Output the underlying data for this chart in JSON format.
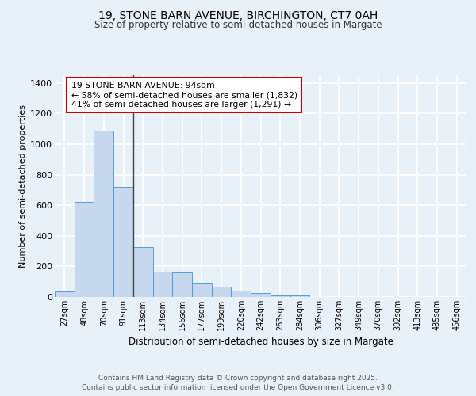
{
  "title1": "19, STONE BARN AVENUE, BIRCHINGTON, CT7 0AH",
  "title2": "Size of property relative to semi-detached houses in Margate",
  "xlabel": "Distribution of semi-detached houses by size in Margate",
  "ylabel": "Number of semi-detached properties",
  "footer1": "Contains HM Land Registry data © Crown copyright and database right 2025.",
  "footer2": "Contains public sector information licensed under the Open Government Licence v3.0.",
  "annotation_line1": "19 STONE BARN AVENUE: 94sqm",
  "annotation_line2": "← 58% of semi-detached houses are smaller (1,832)",
  "annotation_line3": "41% of semi-detached houses are larger (1,291) →",
  "categories": [
    "27sqm",
    "48sqm",
    "70sqm",
    "91sqm",
    "113sqm",
    "134sqm",
    "156sqm",
    "177sqm",
    "199sqm",
    "220sqm",
    "242sqm",
    "263sqm",
    "284sqm",
    "306sqm",
    "327sqm",
    "349sqm",
    "370sqm",
    "392sqm",
    "413sqm",
    "435sqm",
    "456sqm"
  ],
  "values": [
    35,
    620,
    1090,
    720,
    325,
    165,
    160,
    95,
    65,
    40,
    25,
    10,
    10,
    0,
    0,
    0,
    0,
    0,
    0,
    0,
    0
  ],
  "bar_color": "#c5d8ed",
  "bar_edge_color": "#5b9bd5",
  "bg_color": "#e8f0f8",
  "plot_bg_color": "#e8f0f8",
  "grid_color": "#ffffff",
  "ylim": [
    0,
    1450
  ],
  "yticks": [
    0,
    200,
    400,
    600,
    800,
    1000,
    1200,
    1400
  ],
  "annotation_box_color": "#ffffff",
  "annotation_border_color": "#cc0000",
  "property_line_x": 3.5
}
